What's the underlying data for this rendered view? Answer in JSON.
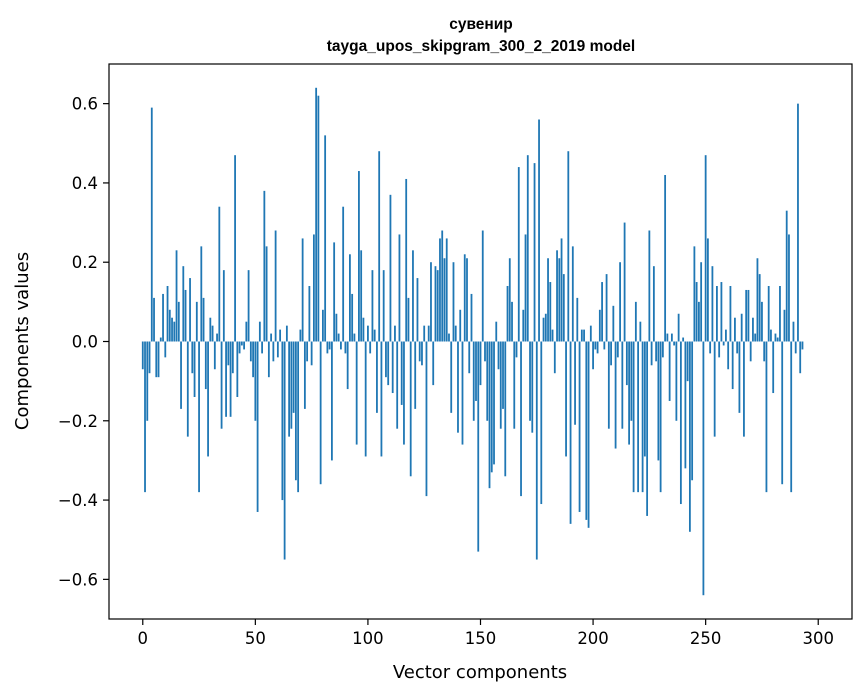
{
  "chart_data": {
    "type": "bar",
    "title": "сувенир",
    "subtitle": "tayga_upos_skipgram_300_2_2019 model",
    "xlabel": "Vector components",
    "ylabel": "Components values",
    "xlim": [
      -15,
      315
    ],
    "ylim": [
      -0.7,
      0.7
    ],
    "xticks": [
      0,
      50,
      100,
      150,
      200,
      250,
      300
    ],
    "xtick_labels": [
      "0",
      "50",
      "100",
      "150",
      "200",
      "250",
      "300"
    ],
    "yticks": [
      -0.6,
      -0.4,
      -0.2,
      0.0,
      0.2,
      0.4,
      0.6
    ],
    "ytick_labels": [
      "−0.6",
      "−0.4",
      "−0.2",
      "0.0",
      "0.2",
      "0.4",
      "0.6"
    ],
    "grid": false,
    "color": "#1f77b4",
    "x_start": 0,
    "values": [
      -0.07,
      -0.38,
      -0.2,
      -0.08,
      0.59,
      0.11,
      -0.09,
      -0.09,
      0.01,
      0.12,
      -0.04,
      0.14,
      0.08,
      0.06,
      0.05,
      0.23,
      0.1,
      -0.17,
      0.19,
      0.13,
      -0.24,
      0.16,
      -0.08,
      -0.14,
      0.1,
      -0.38,
      0.24,
      0.11,
      -0.12,
      -0.29,
      0.06,
      0.04,
      -0.07,
      0.02,
      0.34,
      -0.22,
      0.18,
      -0.19,
      -0.06,
      -0.19,
      -0.08,
      0.47,
      -0.14,
      -0.03,
      -0.01,
      -0.02,
      0.05,
      0.18,
      -0.05,
      -0.09,
      -0.2,
      -0.43,
      0.05,
      -0.03,
      0.38,
      0.24,
      -0.09,
      0.02,
      -0.05,
      0.28,
      -0.04,
      0.03,
      -0.4,
      -0.55,
      0.04,
      -0.24,
      -0.22,
      -0.18,
      -0.35,
      -0.38,
      0.03,
      0.26,
      -0.17,
      -0.05,
      0.14,
      -0.06,
      0.27,
      0.64,
      0.62,
      -0.36,
      0.08,
      0.52,
      -0.03,
      -0.02,
      -0.3,
      0.25,
      0.07,
      0.02,
      -0.02,
      0.34,
      -0.03,
      -0.12,
      0.22,
      0.12,
      0.02,
      -0.26,
      0.43,
      0.23,
      0.06,
      -0.29,
      0.04,
      -0.03,
      0.18,
      0.03,
      -0.18,
      0.48,
      -0.29,
      0.18,
      -0.09,
      -0.11,
      0.37,
      -0.13,
      0.04,
      -0.22,
      0.27,
      -0.16,
      -0.26,
      0.41,
      0.11,
      -0.34,
      0.23,
      -0.17,
      0.16,
      -0.05,
      -0.06,
      0.04,
      -0.39,
      0.04,
      0.2,
      -0.11,
      0.19,
      0.18,
      0.26,
      0.28,
      0.21,
      0.26,
      0.02,
      -0.18,
      0.2,
      0.04,
      -0.23,
      0.08,
      -0.26,
      0.22,
      0.21,
      -0.08,
      0.12,
      -0.2,
      -0.15,
      -0.53,
      -0.11,
      0.28,
      -0.05,
      -0.2,
      -0.37,
      -0.33,
      -0.31,
      0.05,
      -0.07,
      -0.22,
      -0.17,
      -0.34,
      0.14,
      0.21,
      0.1,
      -0.22,
      -0.04,
      0.44,
      -0.39,
      0.08,
      0.27,
      0.47,
      -0.2,
      -0.23,
      0.45,
      -0.55,
      0.56,
      -0.41,
      0.06,
      0.07,
      0.21,
      0.15,
      0.03,
      -0.08,
      0.23,
      0.21,
      0.26,
      0.17,
      -0.29,
      0.48,
      -0.46,
      0.24,
      -0.21,
      0.11,
      -0.43,
      0.03,
      0.03,
      -0.45,
      -0.47,
      0.04,
      -0.07,
      -0.02,
      -0.03,
      0.08,
      0.15,
      -0.02,
      0.17,
      -0.22,
      -0.06,
      0.09,
      -0.27,
      -0.04,
      0.2,
      -0.22,
      0.3,
      -0.11,
      -0.26,
      -0.2,
      -0.38,
      0.1,
      -0.38,
      0.05,
      -0.38,
      -0.29,
      -0.44,
      0.28,
      -0.06,
      0.19,
      -0.05,
      -0.3,
      -0.38,
      -0.04,
      0.42,
      0.02,
      -0.15,
      0.02,
      -0.01,
      -0.2,
      0.07,
      -0.41,
      0.01,
      -0.32,
      -0.1,
      -0.48,
      -0.35,
      0.24,
      0.15,
      0.1,
      0.2,
      -0.64,
      0.47,
      0.26,
      -0.03,
      0.19,
      -0.24,
      0.14,
      -0.04,
      0.15,
      -0.01,
      0.03,
      -0.07,
      0.14,
      -0.12,
      0.06,
      -0.03,
      -0.18,
      0.07,
      -0.24,
      0.13,
      0.13,
      -0.05,
      0.06,
      0.02,
      0.21,
      0.17,
      0.1,
      -0.05,
      -0.38,
      0.14,
      0.03,
      -0.13,
      0.02,
      0.01,
      0.14,
      -0.36,
      0.08,
      0.33,
      0.27,
      -0.38,
      0.05,
      -0.03,
      0.6,
      -0.08,
      -0.02
    ]
  }
}
